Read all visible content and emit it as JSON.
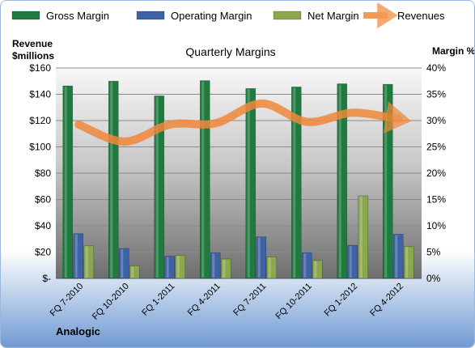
{
  "chart_data": {
    "type": "bar",
    "title": "Quarterly Margins",
    "left_axis_label": [
      "Revenue",
      "$millions"
    ],
    "right_axis_label": "Margin %",
    "source": "Analogic",
    "categories": [
      "FQ 7-2010",
      "FQ 10-2010",
      "FQ 1-2011",
      "FQ 4-2011",
      "FQ 7-2011",
      "FQ 10-2011",
      "FQ 1-2012",
      "FQ 4-2012"
    ],
    "left_ticks": [
      "$-",
      "$20",
      "$40",
      "$60",
      "$80",
      "$100",
      "$120",
      "$140",
      "$160"
    ],
    "right_ticks": [
      "0%",
      "5%",
      "10%",
      "15%",
      "20%",
      "25%",
      "30%",
      "35%",
      "40%"
    ],
    "ylim_left": [
      0,
      160
    ],
    "ylim_right": [
      0,
      40
    ],
    "legend_position": "top",
    "series": [
      {
        "name": "Gross Margin",
        "axis": "right",
        "kind": "bar",
        "color": "#1e7a3e",
        "values": [
          36.6,
          37.5,
          34.7,
          37.6,
          36.1,
          36.4,
          37.0,
          36.9
        ]
      },
      {
        "name": "Operating Margin",
        "axis": "right",
        "kind": "bar",
        "color": "#3d62a5",
        "values": [
          8.5,
          5.7,
          4.2,
          4.9,
          7.9,
          4.9,
          6.3,
          8.4
        ]
      },
      {
        "name": "Net Margin",
        "axis": "right",
        "kind": "bar",
        "color": "#8aa84e",
        "values": [
          6.2,
          2.4,
          4.4,
          3.7,
          4.1,
          3.4,
          15.7,
          6.1
        ]
      },
      {
        "name": "Revenues",
        "axis": "left",
        "kind": "line",
        "color": "#f0883a",
        "values": [
          117,
          104,
          117,
          118,
          133,
          119,
          126,
          121
        ]
      }
    ],
    "grid": true
  }
}
